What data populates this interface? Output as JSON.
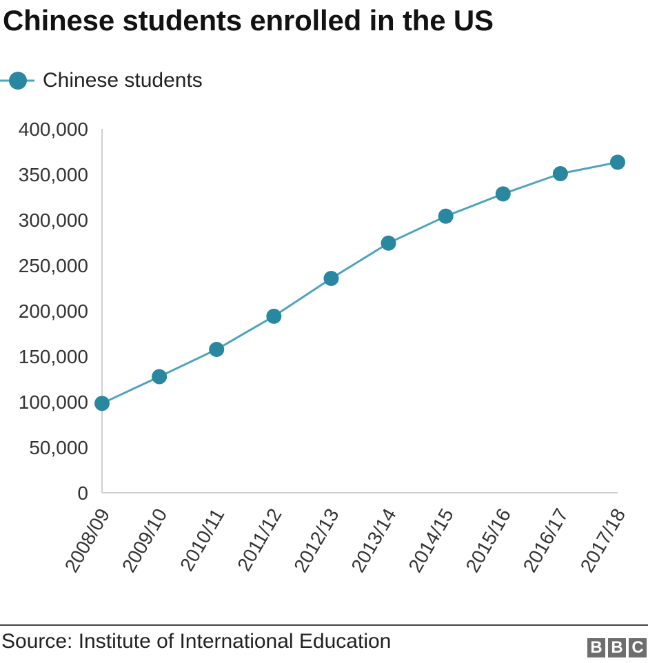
{
  "title": "Chinese students enrolled in the US",
  "source": "Source: Institute of International Education",
  "logo": {
    "name": "bbc-logo",
    "letters": [
      "B",
      "B",
      "C"
    ]
  },
  "colors": {
    "series": "#2a87a0",
    "series_line": "#4ea3bd",
    "axis": "#cfcfcf",
    "logo_block": "#6e6e6e"
  },
  "chart_data": {
    "type": "line",
    "title": "Chinese students enrolled in the US",
    "x": [
      "2008/09",
      "2009/10",
      "2010/11",
      "2011/12",
      "2012/13",
      "2013/14",
      "2014/15",
      "2015/16",
      "2016/17",
      "2017/18"
    ],
    "series": [
      {
        "name": "Chinese students",
        "values": [
          98235,
          127628,
          157558,
          194029,
          235597,
          274439,
          304040,
          328547,
          350755,
          363341
        ]
      }
    ],
    "ylim": [
      0,
      400000
    ],
    "yticks": [
      0,
      50000,
      100000,
      150000,
      200000,
      250000,
      300000,
      350000,
      400000
    ],
    "ytick_labels": [
      "0",
      "50,000",
      "100,000",
      "150,000",
      "200,000",
      "250,000",
      "300,000",
      "350,000",
      "400,000"
    ],
    "legend_position": "top-left",
    "grid": false,
    "markers": true
  }
}
